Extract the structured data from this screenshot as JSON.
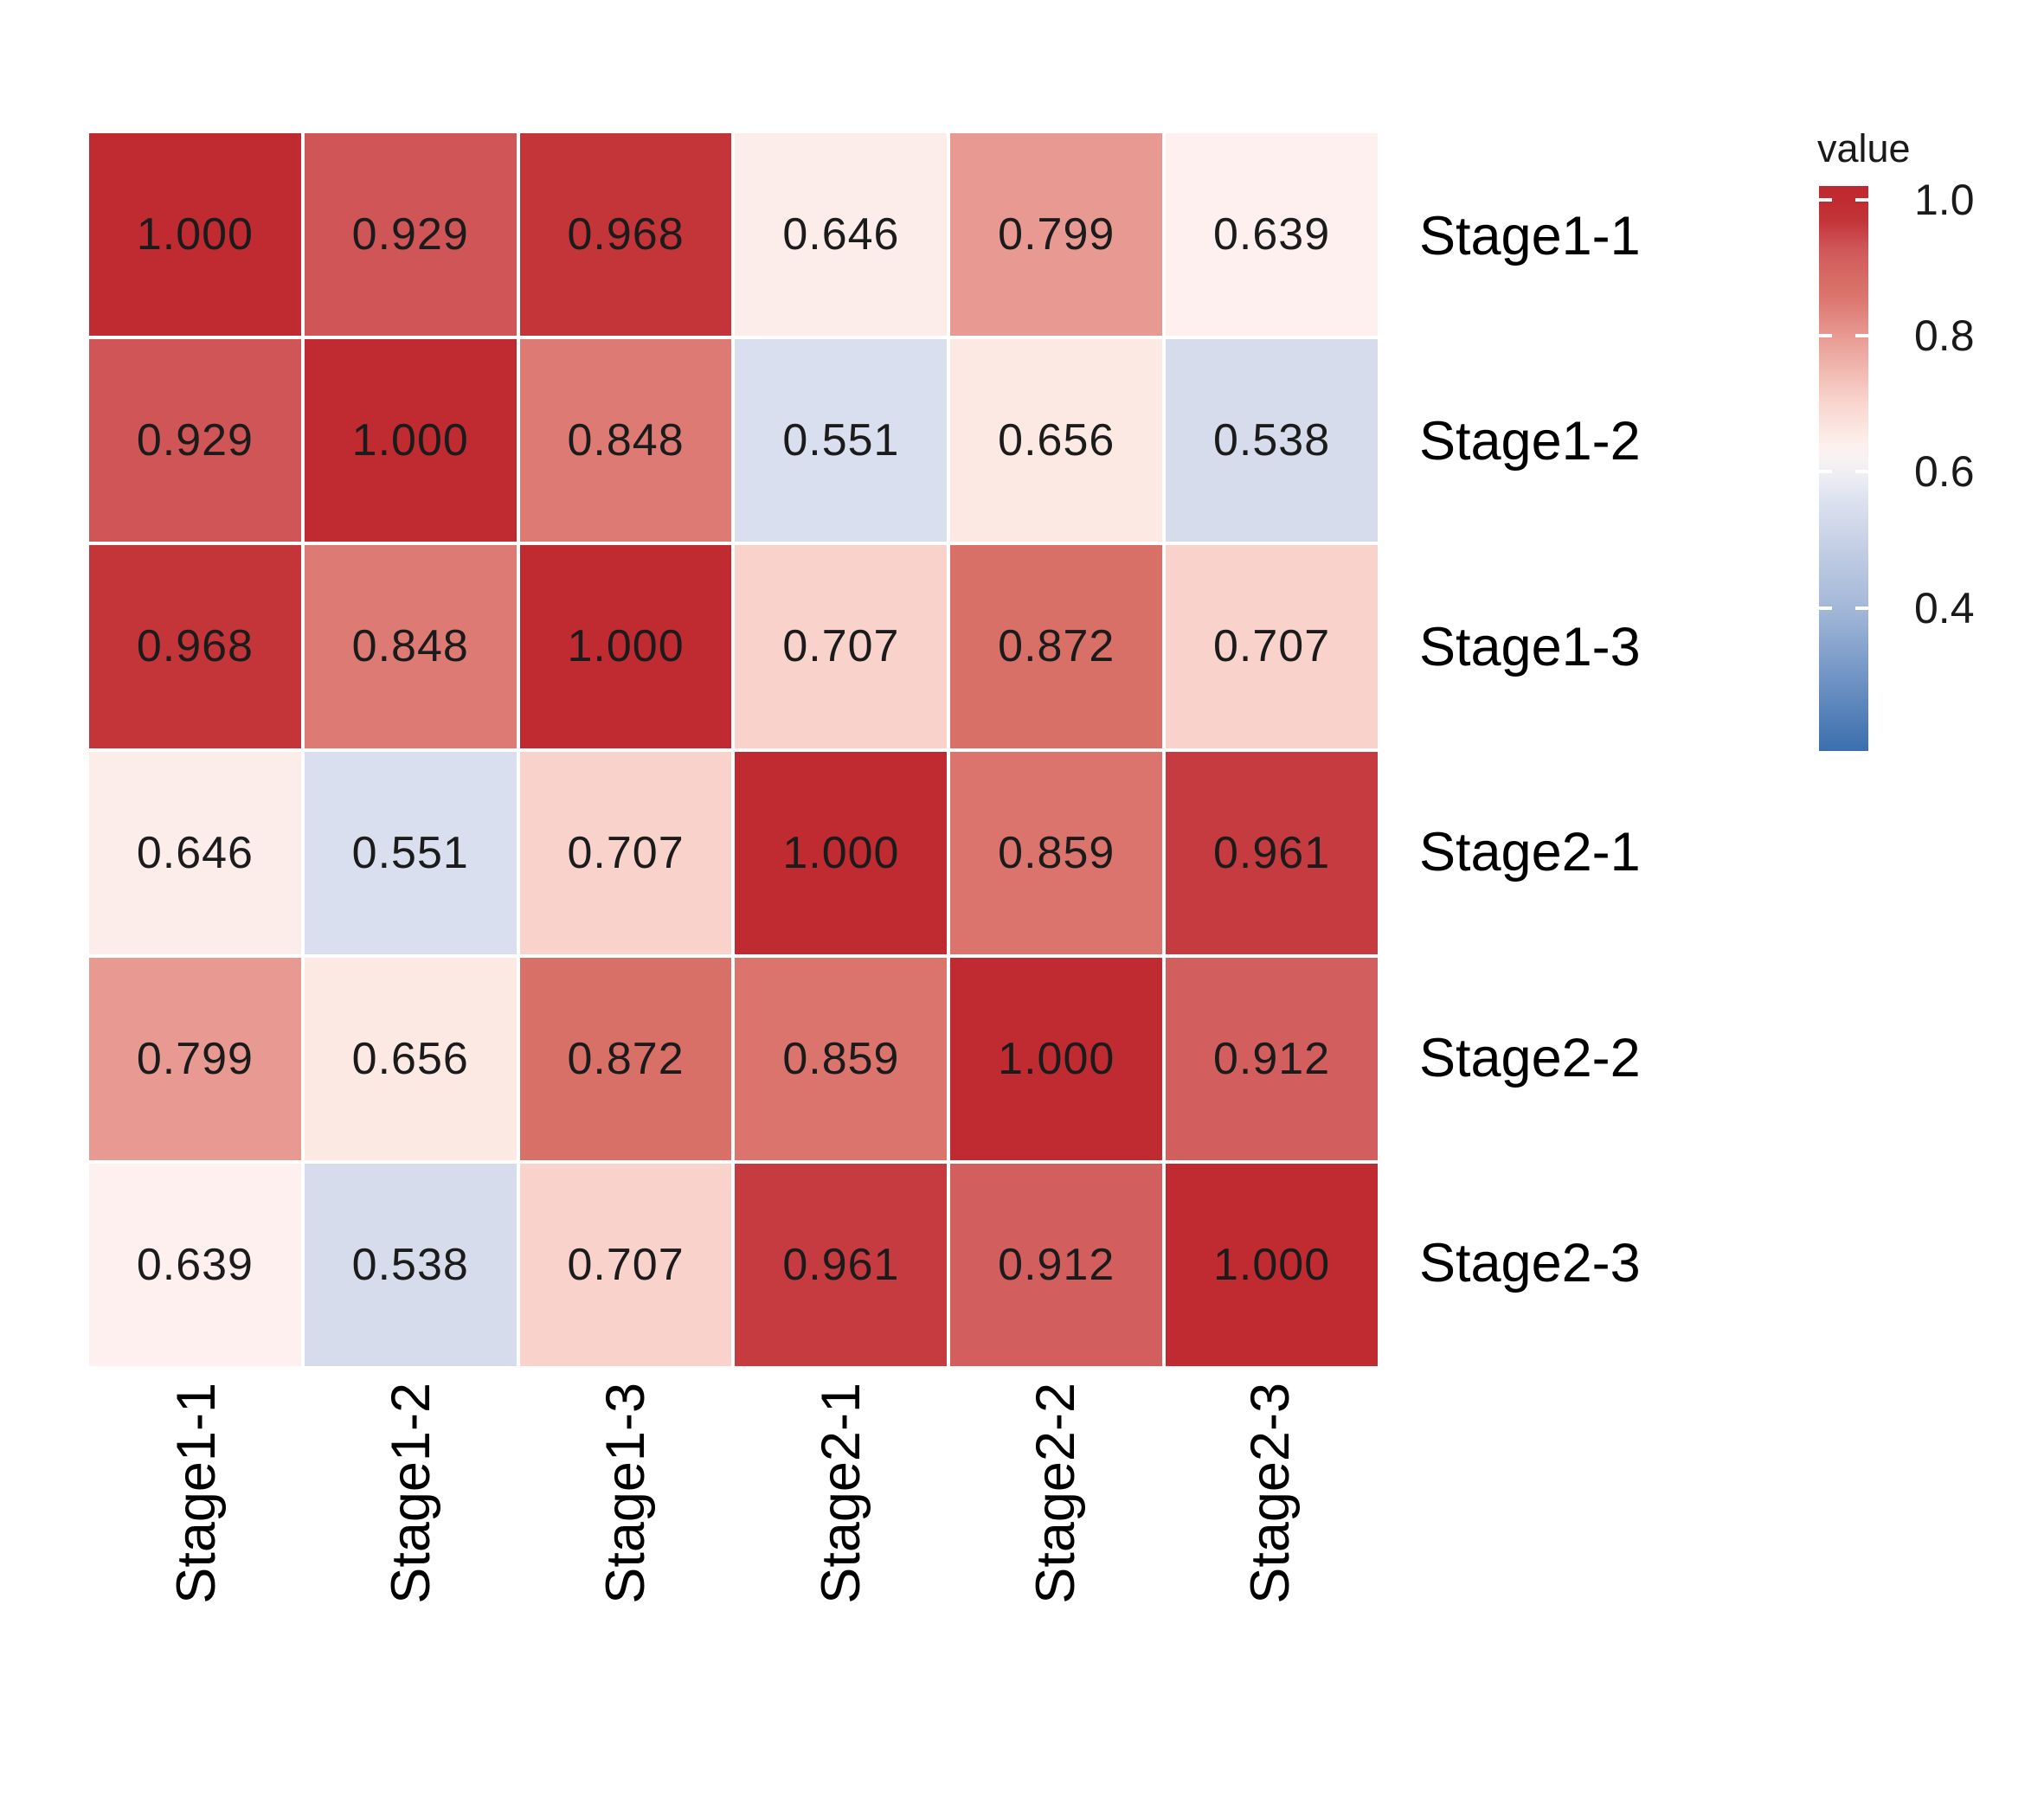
{
  "chart_data": {
    "type": "heatmap",
    "legend_title": "value",
    "rows": [
      "Stage1-1",
      "Stage1-2",
      "Stage1-3",
      "Stage2-1",
      "Stage2-2",
      "Stage2-3"
    ],
    "columns": [
      "Stage1-1",
      "Stage1-2",
      "Stage1-3",
      "Stage2-1",
      "Stage2-2",
      "Stage2-3"
    ],
    "values": [
      [
        1.0,
        0.929,
        0.968,
        0.646,
        0.799,
        0.639
      ],
      [
        0.929,
        1.0,
        0.848,
        0.551,
        0.656,
        0.538
      ],
      [
        0.968,
        0.848,
        1.0,
        0.707,
        0.872,
        0.707
      ],
      [
        0.646,
        0.551,
        0.707,
        1.0,
        0.859,
        0.961
      ],
      [
        0.799,
        0.656,
        0.872,
        0.859,
        1.0,
        0.912
      ],
      [
        0.639,
        0.538,
        0.707,
        0.961,
        0.912,
        1.0
      ]
    ],
    "value_decimals": 3,
    "legend_ticks": [
      1.0,
      0.8,
      0.6,
      0.4
    ],
    "legend_domain_min": 0.19,
    "legend_domain_max": 1.02,
    "grid_on": false,
    "legend_position": "right",
    "colormap": [
      [
        0.19,
        "#3a6fad"
      ],
      [
        0.3,
        "#7295c5"
      ],
      [
        0.4,
        "#a3b8d8"
      ],
      [
        0.47,
        "#bdc9e2"
      ],
      [
        0.538,
        "#d6dcec"
      ],
      [
        0.551,
        "#d9dfee"
      ],
      [
        0.58,
        "#e7e9f3"
      ],
      [
        0.615,
        "#f6f2f3"
      ],
      [
        0.639,
        "#fdf0ee"
      ],
      [
        0.656,
        "#fce9e4"
      ],
      [
        0.707,
        "#f8d2cb"
      ],
      [
        0.799,
        "#e89a92"
      ],
      [
        0.848,
        "#dd7a73"
      ],
      [
        0.859,
        "#db746d"
      ],
      [
        0.872,
        "#d87067"
      ],
      [
        0.912,
        "#d25f5e"
      ],
      [
        0.929,
        "#cf5557"
      ],
      [
        0.961,
        "#c63b40"
      ],
      [
        0.968,
        "#c33539"
      ],
      [
        1.0,
        "#c02a31"
      ],
      [
        1.02,
        "#bf282f"
      ]
    ],
    "colors": {
      "high": "#c02a31",
      "mid": "#f6f2f3",
      "low": "#3a6fad",
      "cell_text": "#1b1b1b",
      "label_text": "#000000",
      "gridline": "#ffffff"
    }
  }
}
